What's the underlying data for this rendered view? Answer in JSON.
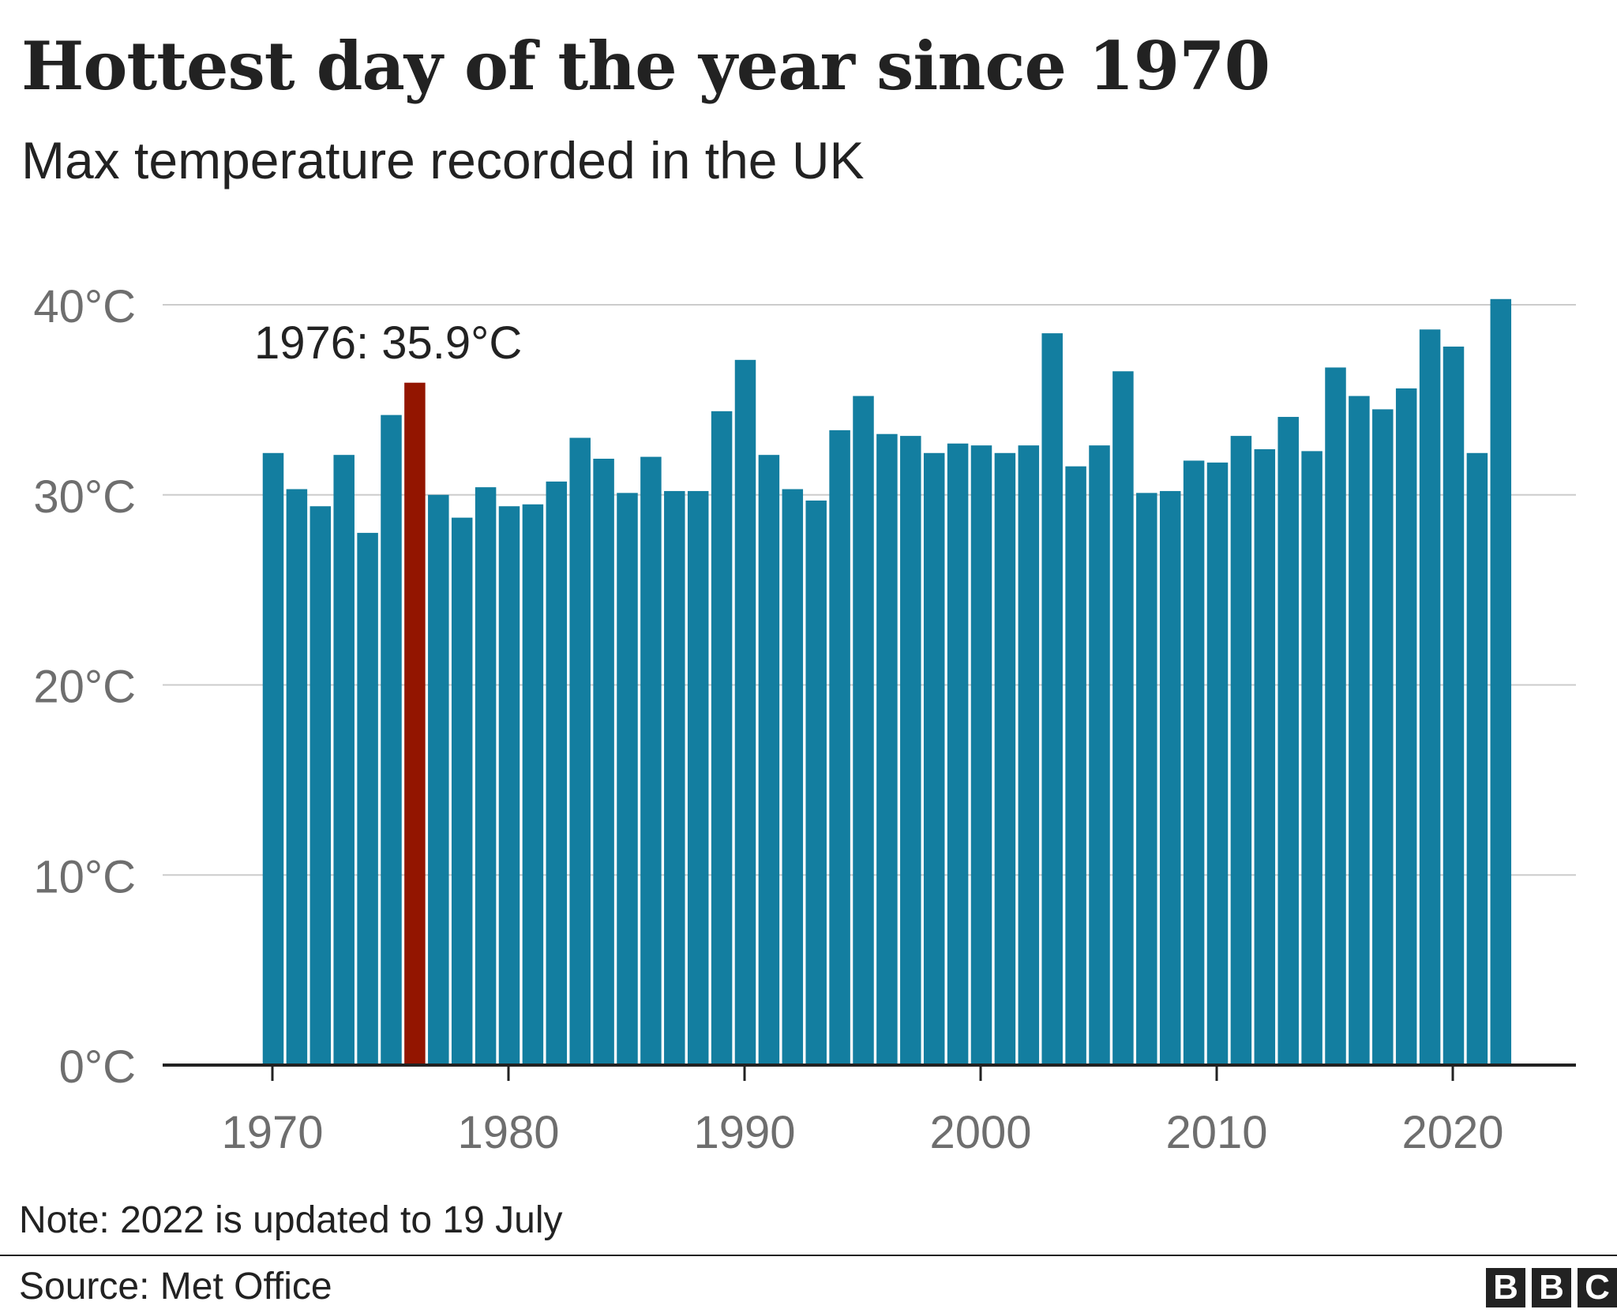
{
  "header": {
    "title": "Hottest day of the year since 1970",
    "subtitle": "Max temperature recorded in the UK"
  },
  "footer": {
    "note": "Note: 2022 is updated to 19 July",
    "source": "Source: Met Office",
    "logo_letters": [
      "B",
      "B",
      "C"
    ]
  },
  "colors": {
    "bar": "#137ea0",
    "highlight": "#931500",
    "grid": "#cccccc",
    "axis": "#222222",
    "tick_text": "#6e6e6e",
    "text": "#222222"
  },
  "chart_data": {
    "type": "bar",
    "title": "Hottest day of the year since 1970",
    "subtitle": "Max temperature recorded in the UK",
    "xlabel": "",
    "ylabel": "",
    "ylim": [
      0,
      40
    ],
    "y_ticks": [
      0,
      10,
      20,
      30,
      40
    ],
    "y_tick_labels": [
      "0°C",
      "10°C",
      "20°C",
      "30°C",
      "40°C"
    ],
    "x_ticks": [
      1970,
      1980,
      1990,
      2000,
      2010,
      2020
    ],
    "x_tick_labels": [
      "1970",
      "1980",
      "1990",
      "2000",
      "2010",
      "2020"
    ],
    "grid": true,
    "highlight": {
      "year": 1976,
      "label": "1976: 35.9°C"
    },
    "series": [
      {
        "x": [
          1970,
          1971,
          1972,
          1973,
          1974,
          1975,
          1976,
          1977,
          1978,
          1979,
          1980,
          1981,
          1982,
          1983,
          1984,
          1985,
          1986,
          1987,
          1988,
          1989,
          1990,
          1991,
          1992,
          1993,
          1994,
          1995,
          1996,
          1997,
          1998,
          1999,
          2000,
          2001,
          2002,
          2003,
          2004,
          2005,
          2006,
          2007,
          2008,
          2009,
          2010,
          2011,
          2012,
          2013,
          2014,
          2015,
          2016,
          2017,
          2018,
          2019,
          2020,
          2021,
          2022
        ],
        "values": [
          32.2,
          30.3,
          29.4,
          32.1,
          28.0,
          34.2,
          35.9,
          30.0,
          28.8,
          30.4,
          29.4,
          29.5,
          30.7,
          33.0,
          31.9,
          30.1,
          32.0,
          30.2,
          30.2,
          34.4,
          37.1,
          32.1,
          30.3,
          29.7,
          33.4,
          35.2,
          33.2,
          33.1,
          32.2,
          32.7,
          32.6,
          32.2,
          32.6,
          38.5,
          31.5,
          32.6,
          36.5,
          30.1,
          30.2,
          31.8,
          31.7,
          33.1,
          32.4,
          34.1,
          32.3,
          36.7,
          35.2,
          34.5,
          35.6,
          38.7,
          37.8,
          32.2,
          40.3
        ]
      }
    ]
  }
}
